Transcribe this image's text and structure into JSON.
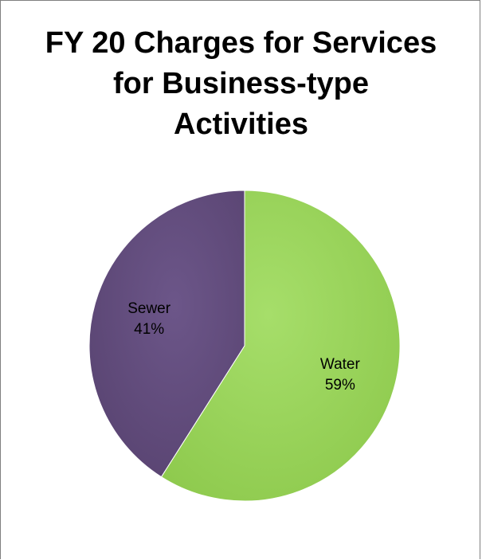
{
  "chart_data": {
    "type": "pie",
    "title_lines": [
      "FY 20 Charges for Services",
      "for Business-type",
      "Activities"
    ],
    "slices": [
      {
        "label": "Water",
        "value": 59,
        "percent_label": "59%",
        "color": "#92d050"
      },
      {
        "label": "Sewer",
        "value": 41,
        "percent_label": "41%",
        "color": "#604a7b"
      }
    ],
    "legend": "none",
    "data_labels": "category and percentage"
  }
}
